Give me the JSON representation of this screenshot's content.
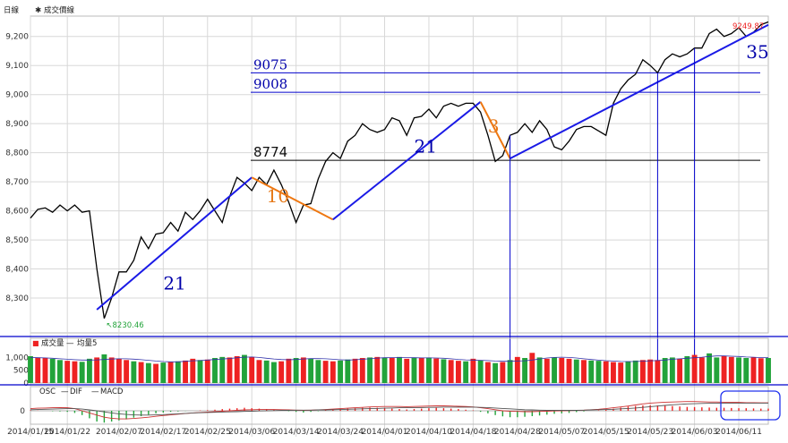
{
  "chart_data": [
    {
      "type": "line",
      "panel": "price",
      "label": "日線",
      "legend": [
        {
          "marker": "✱",
          "name": "成交價線"
        }
      ],
      "ylim": [
        8180,
        9270
      ],
      "yticks": [
        8300,
        8400,
        8500,
        8600,
        8700,
        8800,
        8900,
        9000,
        9100,
        9200
      ],
      "ytick_labels": [
        "8,300",
        "8,400",
        "8,500",
        "8,600",
        "8,700",
        "8,800",
        "8,900",
        "9,000",
        "9,100",
        "9,200"
      ],
      "x": [
        "2014/01/15",
        "2014/01/16",
        "2014/01/17",
        "2014/01/20",
        "2014/01/21",
        "2014/01/22",
        "2014/01/23",
        "2014/01/24",
        "2014/01/27",
        "2014/01/28",
        "2014/02/05",
        "2014/02/06",
        "2014/02/07",
        "2014/02/10",
        "2014/02/11",
        "2014/02/12",
        "2014/02/13",
        "2014/02/14",
        "2014/02/17",
        "2014/02/18",
        "2014/02/19",
        "2014/02/20",
        "2014/02/21",
        "2014/02/24",
        "2014/02/25",
        "2014/02/26",
        "2014/02/27",
        "2014/03/03",
        "2014/03/04",
        "2014/03/05",
        "2014/03/06",
        "2014/03/07",
        "2014/03/10",
        "2014/03/11",
        "2014/03/12",
        "2014/03/13",
        "2014/03/14",
        "2014/03/17",
        "2014/03/18",
        "2014/03/19",
        "2014/03/20",
        "2014/03/21",
        "2014/03/24",
        "2014/03/25",
        "2014/03/26",
        "2014/03/27",
        "2014/03/28",
        "2014/03/31",
        "2014/04/01",
        "2014/04/02",
        "2014/04/03",
        "2014/04/07",
        "2014/04/08",
        "2014/04/09",
        "2014/04/10",
        "2014/04/11",
        "2014/04/14",
        "2014/04/15",
        "2014/04/16",
        "2014/04/17",
        "2014/04/18",
        "2014/04/21",
        "2014/04/22",
        "2014/04/23",
        "2014/04/24",
        "2014/04/25",
        "2014/04/28",
        "2014/04/29",
        "2014/04/30",
        "2014/05/02",
        "2014/05/05",
        "2014/05/06",
        "2014/05/07",
        "2014/05/08",
        "2014/05/09",
        "2014/05/12",
        "2014/05/13",
        "2014/05/14",
        "2014/05/15",
        "2014/05/16",
        "2014/05/19",
        "2014/05/20",
        "2014/05/21",
        "2014/05/22",
        "2014/05/23",
        "2014/05/26",
        "2014/05/27",
        "2014/05/28",
        "2014/05/29",
        "2014/05/30",
        "2014/06/03",
        "2014/06/04",
        "2014/06/05",
        "2014/06/06",
        "2014/06/09",
        "2014/06/10",
        "2014/06/11",
        "2014/06/12",
        "2014/06/13",
        "2014/06/16",
        "2014/06/17"
      ],
      "values": [
        8575,
        8605,
        8610,
        8595,
        8620,
        8600,
        8620,
        8595,
        8600,
        8400,
        8230,
        8300,
        8390,
        8390,
        8430,
        8510,
        8470,
        8520,
        8525,
        8560,
        8530,
        8595,
        8570,
        8600,
        8640,
        8600,
        8560,
        8650,
        8715,
        8695,
        8670,
        8715,
        8690,
        8740,
        8690,
        8630,
        8560,
        8620,
        8625,
        8710,
        8770,
        8800,
        8780,
        8840,
        8860,
        8900,
        8880,
        8870,
        8880,
        8920,
        8910,
        8860,
        8920,
        8925,
        8950,
        8920,
        8960,
        8970,
        8960,
        8970,
        8970,
        8940,
        8860,
        8770,
        8790,
        8860,
        8870,
        8900,
        8870,
        8910,
        8880,
        8820,
        8810,
        8840,
        8880,
        8890,
        8890,
        8875,
        8860,
        8970,
        9020,
        9050,
        9070,
        9120,
        9100,
        9075,
        9120,
        9140,
        9130,
        9140,
        9160,
        9160,
        9210,
        9225,
        9200,
        9210,
        9230,
        9200,
        9215,
        9240,
        9249.87
      ],
      "max_label": "9249.87",
      "min_label": "8230.46",
      "annotations": {
        "levels": [
          {
            "value": 9075,
            "label": "9075"
          },
          {
            "value": 9008,
            "label": "9008"
          },
          {
            "value": 8774,
            "label": "8774"
          }
        ],
        "counts": [
          {
            "label": "21",
            "color": "blue"
          },
          {
            "label": "10",
            "color": "orange"
          },
          {
            "label": "21",
            "color": "blue"
          },
          {
            "label": "3",
            "color": "orange"
          },
          {
            "label": "35",
            "color": "blue"
          }
        ],
        "trendlines": [
          {
            "color": "blue",
            "from": [
              "2014/01/28",
              8260
            ],
            "to": [
              "2014/03/06",
              8715
            ]
          },
          {
            "color": "orange",
            "from": [
              "2014/03/06",
              8715
            ],
            "to": [
              "2014/03/21",
              8570
            ]
          },
          {
            "color": "blue",
            "from": [
              "2014/03/21",
              8570
            ],
            "to": [
              "2014/04/21",
              8975
            ]
          },
          {
            "color": "orange",
            "from": [
              "2014/04/21",
              8975
            ],
            "to": [
              "2014/04/25",
              8780
            ]
          },
          {
            "color": "blue",
            "from": [
              "2014/04/25",
              8780
            ],
            "to": [
              "2014/06/17",
              9240
            ]
          }
        ]
      }
    },
    {
      "type": "bar",
      "panel": "volume",
      "legend": [
        {
          "marker": "■",
          "name": "成交量"
        },
        {
          "marker": "—",
          "name": "均量5"
        }
      ],
      "ylim": [
        0,
        1400
      ],
      "yticks": [
        0,
        500,
        1000
      ],
      "ytick_labels": [
        "0",
        "500",
        "1,000"
      ],
      "values": [
        1050,
        1000,
        980,
        950,
        900,
        870,
        850,
        830,
        950,
        1000,
        1120,
        1000,
        950,
        900,
        850,
        820,
        780,
        750,
        800,
        820,
        850,
        880,
        950,
        900,
        920,
        980,
        1020,
        1000,
        1050,
        1100,
        1020,
        900,
        880,
        820,
        850,
        950,
        980,
        1000,
        960,
        900,
        870,
        850,
        880,
        920,
        950,
        980,
        1000,
        1020,
        1000,
        980,
        1020,
        950,
        1000,
        980,
        1000,
        960,
        930,
        900,
        870,
        850,
        950,
        880,
        820,
        780,
        820,
        900,
        1020,
        980,
        1180,
        1000,
        950,
        1000,
        980,
        950,
        920,
        900,
        880,
        870,
        850,
        820,
        800,
        850,
        880,
        900,
        920,
        900,
        980,
        1000,
        950,
        1050,
        1100,
        1000,
        1160,
        1000,
        1050,
        1020,
        1000,
        980,
        1000,
        970,
        980
      ],
      "up": [
        0,
        1,
        1,
        0,
        0,
        1,
        1,
        0,
        0,
        1,
        0,
        1,
        1,
        1,
        0,
        1,
        0,
        1,
        0,
        1,
        0,
        1,
        1,
        0,
        1,
        0,
        0,
        1,
        1,
        0,
        1,
        1,
        0,
        0,
        1,
        1,
        0,
        1,
        0,
        0,
        1,
        1,
        0,
        0,
        1,
        1,
        0,
        1,
        0,
        1,
        0,
        1,
        0,
        1,
        0,
        1,
        0,
        1,
        1,
        0,
        1,
        0,
        1,
        0,
        1,
        0,
        1,
        0,
        1,
        0,
        1,
        0,
        1,
        1,
        0,
        1,
        0,
        0,
        1,
        1,
        1,
        0,
        0,
        1,
        1,
        1,
        0,
        0,
        1,
        0,
        1,
        1,
        0,
        0,
        1,
        1,
        0,
        0,
        1,
        1,
        0
      ],
      "avg": [
        1000,
        990,
        985,
        970,
        950,
        930,
        915,
        900,
        900,
        905,
        920,
        940,
        950,
        950,
        935,
        915,
        890,
        860,
        840,
        830,
        830,
        850,
        870,
        880,
        900,
        920,
        940,
        960,
        990,
        1010,
        1020,
        1000,
        970,
        940,
        920,
        910,
        920,
        940,
        955,
        960,
        950,
        930,
        910,
        900,
        910,
        930,
        950,
        975,
        990,
        995,
        1000,
        995,
        990,
        985,
        985,
        980,
        970,
        950,
        925,
        905,
        900,
        890,
        880,
        860,
        850,
        850,
        860,
        870,
        900,
        940,
        980,
        1000,
        1010,
        1000,
        980,
        950,
        920,
        895,
        875,
        860,
        845,
        840,
        845,
        855,
        870,
        880,
        900,
        930,
        950,
        970,
        990,
        1010,
        1040,
        1060,
        1060,
        1050,
        1040,
        1020,
        1010,
        995,
        990
      ]
    },
    {
      "type": "bar",
      "panel": "macd",
      "legend": [
        {
          "marker": "—",
          "name": "OSC"
        },
        {
          "marker": "—",
          "name": "DIF"
        },
        {
          "marker": "—",
          "name": "MACD"
        }
      ],
      "yticks": [
        0
      ],
      "ytick_labels": [
        "0"
      ],
      "ylim": [
        -1,
        1
      ],
      "osc": [
        0.02,
        0.01,
        0.0,
        -0.02,
        -0.03,
        -0.05,
        -0.1,
        -0.2,
        -0.35,
        -0.5,
        -0.55,
        -0.5,
        -0.45,
        -0.4,
        -0.32,
        -0.25,
        -0.18,
        -0.12,
        -0.08,
        -0.05,
        -0.03,
        -0.01,
        0.0,
        0.02,
        0.03,
        0.05,
        0.08,
        0.1,
        0.12,
        0.14,
        0.12,
        0.1,
        0.08,
        0.05,
        0.02,
        -0.02,
        -0.05,
        -0.08,
        -0.05,
        -0.02,
        0.02,
        0.05,
        0.08,
        0.1,
        0.12,
        0.14,
        0.15,
        0.14,
        0.12,
        0.1,
        0.08,
        0.06,
        0.08,
        0.1,
        0.12,
        0.14,
        0.12,
        0.1,
        0.08,
        0.05,
        0.02,
        -0.05,
        -0.12,
        -0.2,
        -0.26,
        -0.3,
        -0.3,
        -0.28,
        -0.25,
        -0.22,
        -0.18,
        -0.14,
        -0.12,
        -0.1,
        -0.06,
        -0.03,
        0.0,
        0.02,
        0.05,
        0.1,
        0.15,
        0.2,
        0.22,
        0.25,
        0.26,
        0.25,
        0.24,
        0.22,
        0.2,
        0.18,
        0.17,
        0.16,
        0.15,
        0.14,
        0.14,
        0.13,
        0.12,
        0.12,
        0.11,
        0.1,
        0.1
      ],
      "dif": [
        0.1,
        0.12,
        0.13,
        0.14,
        0.15,
        0.14,
        0.1,
        0.0,
        -0.1,
        -0.2,
        -0.3,
        -0.35,
        -0.38,
        -0.38,
        -0.36,
        -0.33,
        -0.3,
        -0.26,
        -0.22,
        -0.19,
        -0.16,
        -0.13,
        -0.1,
        -0.08,
        -0.06,
        -0.04,
        -0.02,
        0.0,
        0.02,
        0.04,
        0.05,
        0.06,
        0.06,
        0.06,
        0.05,
        0.04,
        0.03,
        0.02,
        0.03,
        0.04,
        0.06,
        0.08,
        0.1,
        0.12,
        0.14,
        0.16,
        0.18,
        0.19,
        0.2,
        0.2,
        0.2,
        0.19,
        0.2,
        0.21,
        0.22,
        0.23,
        0.23,
        0.22,
        0.21,
        0.2,
        0.18,
        0.14,
        0.1,
        0.05,
        0.0,
        -0.02,
        -0.03,
        -0.04,
        -0.04,
        -0.03,
        -0.02,
        -0.01,
        0.0,
        0.01,
        0.02,
        0.03,
        0.05,
        0.07,
        0.1,
        0.14,
        0.18,
        0.22,
        0.27,
        0.32,
        0.36,
        0.38,
        0.4,
        0.41,
        0.42,
        0.43,
        0.43,
        0.42,
        0.41,
        0.41,
        0.4,
        0.4,
        0.39,
        0.38,
        0.38,
        0.37,
        0.37
      ],
      "macd": [
        0.05,
        0.06,
        0.07,
        0.08,
        0.09,
        0.1,
        0.1,
        0.08,
        0.04,
        0.0,
        -0.05,
        -0.1,
        -0.14,
        -0.17,
        -0.19,
        -0.2,
        -0.2,
        -0.19,
        -0.18,
        -0.16,
        -0.14,
        -0.12,
        -0.1,
        -0.09,
        -0.08,
        -0.07,
        -0.06,
        -0.05,
        -0.04,
        -0.03,
        -0.02,
        -0.01,
        0.0,
        0.01,
        0.02,
        0.02,
        0.03,
        0.03,
        0.03,
        0.04,
        0.04,
        0.05,
        0.06,
        0.07,
        0.08,
        0.09,
        0.1,
        0.11,
        0.12,
        0.13,
        0.14,
        0.14,
        0.15,
        0.15,
        0.16,
        0.16,
        0.17,
        0.17,
        0.17,
        0.17,
        0.17,
        0.16,
        0.15,
        0.13,
        0.11,
        0.09,
        0.07,
        0.05,
        0.04,
        0.03,
        0.02,
        0.02,
        0.02,
        0.02,
        0.02,
        0.03,
        0.04,
        0.05,
        0.06,
        0.07,
        0.09,
        0.11,
        0.13,
        0.16,
        0.19,
        0.22,
        0.25,
        0.28,
        0.3,
        0.32,
        0.33,
        0.34,
        0.35,
        0.35,
        0.36,
        0.36,
        0.36,
        0.36,
        0.36,
        0.36,
        0.36
      ]
    }
  ],
  "x_tick_labels": [
    "2014/01/15",
    "2014/01/22",
    "2014/02/07",
    "2014/02/17",
    "2014/02/25",
    "2014/03/06",
    "2014/03/14",
    "2014/03/24",
    "2014/04/01",
    "2014/04/10",
    "2014/04/18",
    "2014/04/28",
    "2014/05/07",
    "2014/05/15",
    "2014/05/23",
    "2014/06/03",
    "2014/06/11"
  ],
  "colors": {
    "price_line": "#000000",
    "up_bar": "#ee2222",
    "down_bar": "#22a33a",
    "trend_blue": "#1a1ae6",
    "trend_orange": "#ee7711",
    "level_blue": "#0000cc",
    "grid": "#d8d8d8",
    "max_label": "#ee2222",
    "min_label": "#22a33a"
  }
}
